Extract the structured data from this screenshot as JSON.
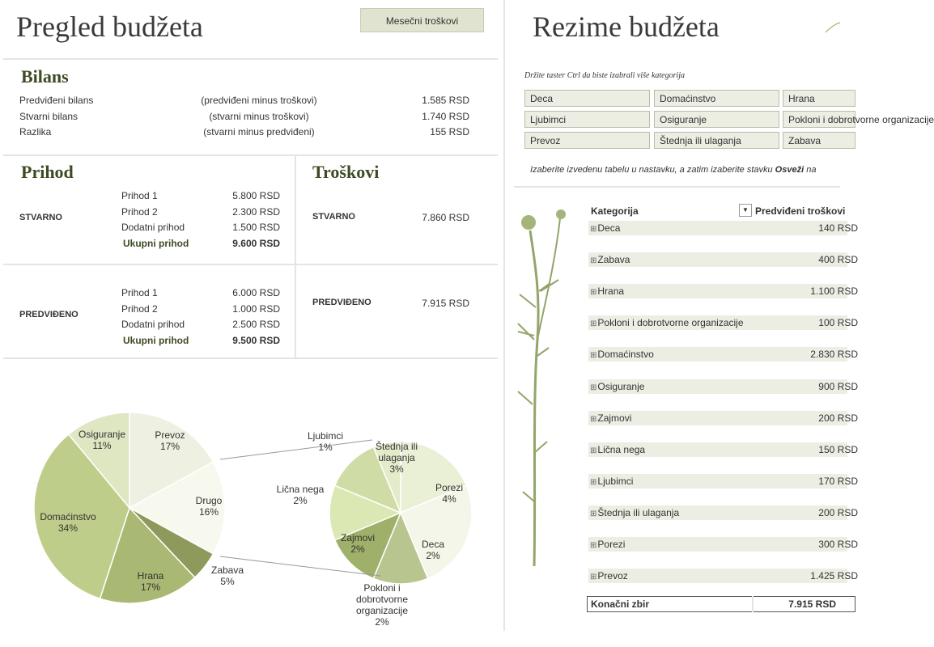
{
  "left": {
    "title": "Pregled budžeta",
    "button": "Mesečni troškovi",
    "balance": {
      "title": "Bilans",
      "rows": [
        [
          "Predviđeni bilans",
          "(predviđeni minus troškovi)",
          "1.585 RSD"
        ],
        [
          "Stvarni bilans",
          "(stvarni minus troškovi)",
          "1.740 RSD"
        ],
        [
          "Razlika",
          "(stvarni minus predviđeni)",
          "155 RSD"
        ]
      ]
    },
    "income": {
      "title": "Prihod",
      "groups": [
        {
          "label": "STVARNO",
          "rows": [
            [
              "Prihod 1",
              "5.800 RSD"
            ],
            [
              "Prihod 2",
              "2.300 RSD"
            ],
            [
              "Dodatni prihod",
              "1.500 RSD"
            ]
          ],
          "total": [
            "Ukupni prihod",
            "9.600 RSD"
          ]
        },
        {
          "label": "PREDVIĐENO",
          "rows": [
            [
              "Prihod 1",
              "6.000 RSD"
            ],
            [
              "Prihod 2",
              "1.000 RSD"
            ],
            [
              "Dodatni prihod",
              "2.500 RSD"
            ]
          ],
          "total": [
            "Ukupni prihod",
            "9.500 RSD"
          ]
        }
      ]
    },
    "expenses": {
      "title": "Troškovi",
      "rows": [
        [
          "STVARNO",
          "7.860 RSD"
        ],
        [
          "PREDVIĐENO",
          "7.915 RSD"
        ]
      ]
    },
    "pie": {
      "categories": [
        "Prevoz",
        "Drugo",
        "Zabava",
        "Hrana",
        "Domaćinstvo",
        "Osiguranje"
      ],
      "values": [
        17,
        16,
        5,
        17,
        34,
        11
      ],
      "value_labels": [
        "17%",
        "16%",
        "5%",
        "17%",
        "34%",
        "11%"
      ],
      "colors": [
        "#eef1e2",
        "#f7f9ef",
        "#8d9a5c",
        "#a9b873",
        "#bfcd8a",
        "#dfe6c2"
      ]
    },
    "subpie": {
      "categories": [
        "Štednja ili ulaganja",
        "Porezi",
        "Deca",
        "Pokloni i dobrotvorne organizacije",
        "Zajmovi",
        "Lična nega",
        "Ljubimci"
      ],
      "values": [
        3,
        4,
        2,
        2,
        2,
        2,
        1
      ],
      "value_labels": [
        "3%",
        "4%",
        "2%",
        "2%",
        "2%",
        "2%",
        "1%"
      ],
      "colors": [
        "#eaf0d6",
        "#f3f6e8",
        "#b9c58f",
        "#9fb06a",
        "#dbe8b3",
        "#cfdca5",
        "#e4ebcb"
      ]
    }
  },
  "right": {
    "title": "Rezime budžeta",
    "hint": "Držite taster Ctrl da biste izabrali više kategorija",
    "slicers": [
      "Deca",
      "Domaćinstvo",
      "Hrana",
      "Ljubimci",
      "Osiguranje",
      "Pokloni i dobrotvorne organizacije",
      "Prevoz",
      "Štednja ili ulaganja",
      "Zabava"
    ],
    "instruction": [
      "Izaberite izvedenu tabelu u nastavku, a zatim izaberite stavku",
      "Osveži",
      "na"
    ],
    "pivot": {
      "header": [
        "Kategorija",
        "Predviđeni troškovi"
      ],
      "rows": [
        [
          "Deca",
          "140 RSD"
        ],
        [
          "Zabava",
          "400 RSD"
        ],
        [
          "Hrana",
          "1.100 RSD"
        ],
        [
          "Pokloni i dobrotvorne organizacije",
          "100 RSD"
        ],
        [
          "Domaćinstvo",
          "2.830 RSD"
        ],
        [
          "Osiguranje",
          "900 RSD"
        ],
        [
          "Zajmovi",
          "200 RSD"
        ],
        [
          "Lična nega",
          "150 RSD"
        ],
        [
          "Ljubimci",
          "170 RSD"
        ],
        [
          "Štednja ili ulaganja",
          "200 RSD"
        ],
        [
          "Porezi",
          "300 RSD"
        ],
        [
          "Prevoz",
          "1.425 RSD"
        ]
      ],
      "total": [
        "Konačni zbir",
        "7.915 RSD"
      ]
    }
  }
}
